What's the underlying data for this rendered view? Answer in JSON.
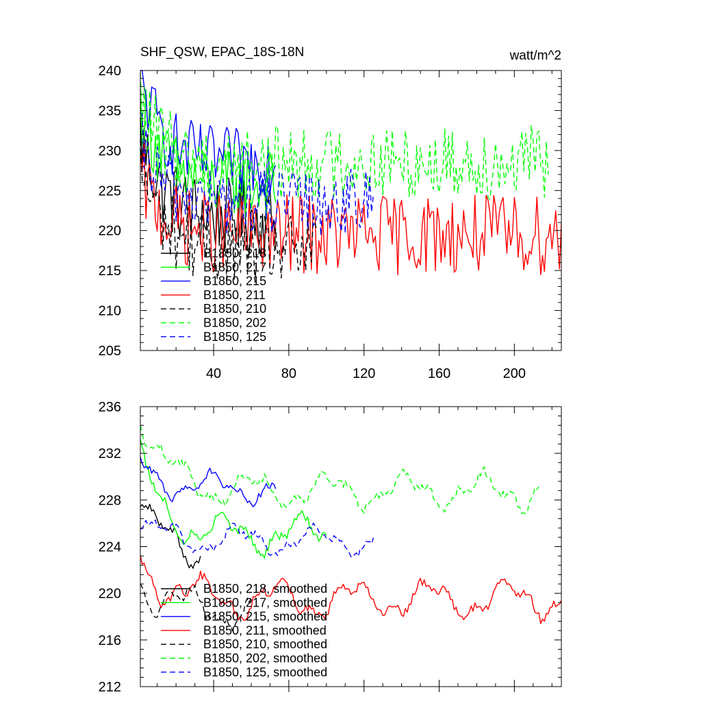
{
  "chart_data": [
    {
      "type": "line",
      "title": "SHF_QSW, EPAC_18S-18N",
      "units": "watt/m^2",
      "xlim": [
        1,
        225
      ],
      "ylim": [
        205,
        240
      ],
      "xticks": [
        40,
        80,
        120,
        160,
        200
      ],
      "xtick_labels": [
        "40",
        "80",
        "120",
        "160",
        "200"
      ],
      "yticks": [
        205,
        210,
        215,
        220,
        225,
        230,
        235,
        240
      ],
      "ytick_labels": [
        "205",
        "210",
        "215",
        "220",
        "225",
        "230",
        "235",
        "240"
      ],
      "legend_position": "lower-left",
      "series": [
        {
          "name": "B1850, 218",
          "color": "#000000",
          "dash": "solid",
          "length": 73,
          "mean": 221.5,
          "amp": 3.5,
          "start": 232
        },
        {
          "name": "B1850, 217",
          "color": "#00ff00",
          "dash": "solid",
          "length": 73,
          "mean": 225.5,
          "amp": 3.2,
          "start": 236
        },
        {
          "name": "B1850, 215",
          "color": "#0000ff",
          "dash": "solid",
          "length": 73,
          "mean": 228.5,
          "amp": 3.0,
          "start": 239
        },
        {
          "name": "B1850, 211",
          "color": "#ff0000",
          "dash": "solid",
          "length": 225,
          "mean": 219.5,
          "amp": 3.6,
          "start": 227
        },
        {
          "name": "B1850, 210",
          "color": "#000000",
          "dash": "dashed",
          "length": 95,
          "mean": 217.5,
          "amp": 3.2,
          "start": 228
        },
        {
          "name": "B1850, 202",
          "color": "#00ff00",
          "dash": "dashed",
          "length": 218,
          "mean": 228.5,
          "amp": 3.3,
          "start": 236
        },
        {
          "name": "B1850, 125",
          "color": "#0000ff",
          "dash": "dashed",
          "length": 125,
          "mean": 223.5,
          "amp": 3.0,
          "start": 231
        }
      ]
    },
    {
      "type": "line",
      "title": "",
      "xlim": [
        1,
        225
      ],
      "ylim": [
        212,
        236
      ],
      "xticks": [
        40,
        80,
        120,
        160,
        200
      ],
      "xtick_labels": [],
      "yticks": [
        212,
        216,
        220,
        224,
        228,
        232,
        236
      ],
      "ytick_labels": [
        "212",
        "216",
        "220",
        "224",
        "228",
        "232",
        "236"
      ],
      "legend_position": "lower-left",
      "series": [
        {
          "name": "B1850, 218, smoothed",
          "color": "#000000",
          "dash": "solid",
          "length": 33,
          "mean": 223.5,
          "amp": 1.6,
          "start": 227.3
        },
        {
          "name": "B1850, 217, smoothed",
          "color": "#00ff00",
          "dash": "solid",
          "length": 100,
          "mean": 225.0,
          "amp": 1.6,
          "start": 231.5
        },
        {
          "name": "B1850, 215, smoothed",
          "color": "#0000ff",
          "dash": "solid",
          "length": 73,
          "mean": 229.0,
          "amp": 1.2,
          "start": 231.0
        },
        {
          "name": "B1850, 211, smoothed",
          "color": "#ff0000",
          "dash": "solid",
          "length": 225,
          "mean": 219.5,
          "amp": 1.6,
          "start": 223.0
        },
        {
          "name": "B1850, 210, smoothed",
          "color": "#000000",
          "dash": "dashed",
          "length": 60,
          "mean": 218.5,
          "amp": 1.6,
          "start": 221.0
        },
        {
          "name": "B1850, 202, smoothed",
          "color": "#00ff00",
          "dash": "dashed",
          "length": 213,
          "mean": 228.8,
          "amp": 1.5,
          "start": 235.6
        },
        {
          "name": "B1850, 125, smoothed",
          "color": "#0000ff",
          "dash": "dashed",
          "length": 125,
          "mean": 224.5,
          "amp": 1.2,
          "start": 225.8
        }
      ]
    }
  ]
}
